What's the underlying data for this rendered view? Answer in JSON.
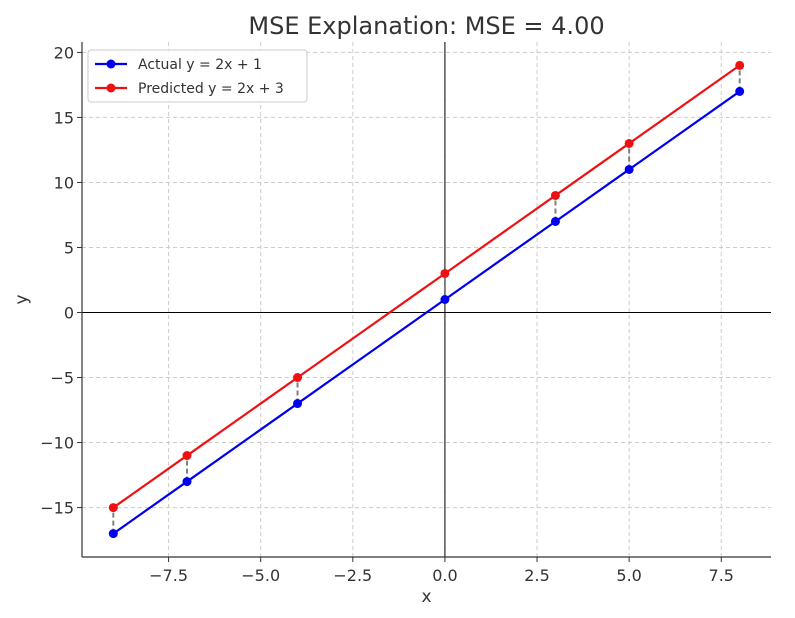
{
  "chart_data": {
    "type": "line",
    "title": "MSE Explanation: MSE = 4.00",
    "xlabel": "x",
    "ylabel": "y",
    "xlim": [
      -9.85,
      8.85
    ],
    "ylim": [
      -18.8,
      20.8
    ],
    "grid": true,
    "legend_position": "top-left",
    "x_ticks": [
      -7.5,
      -5.0,
      -2.5,
      0.0,
      2.5,
      5.0,
      7.5
    ],
    "x_tick_labels": [
      "−7.5",
      "−5.0",
      "−2.5",
      "0.0",
      "2.5",
      "5.0",
      "7.5"
    ],
    "y_ticks": [
      -15,
      -10,
      -5,
      0,
      5,
      10,
      15,
      20
    ],
    "y_tick_labels": [
      "−15",
      "−10",
      "−5",
      "0",
      "5",
      "10",
      "15",
      "20"
    ],
    "x": [
      -9,
      -7,
      -4,
      0,
      3,
      5,
      8
    ],
    "series": [
      {
        "name": "Actual y = 2x + 1",
        "color": "#0000ee",
        "values": [
          -17,
          -13,
          -7,
          1,
          7,
          11,
          17
        ]
      },
      {
        "name": "Predicted y = 2x + 3",
        "color": "#ee1111",
        "values": [
          -15,
          -11,
          -5,
          3,
          9,
          13,
          19
        ]
      }
    ],
    "error_line_color": "#808080"
  }
}
